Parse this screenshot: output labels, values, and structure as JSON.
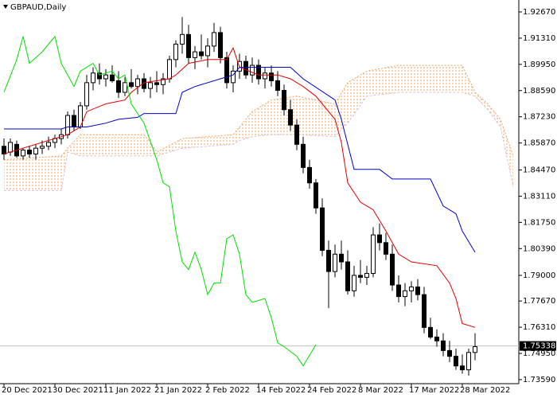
{
  "chart_data": {
    "type": "candlestick",
    "title": "GBPAUD,Daily",
    "open": [
      1.857,
      1.854,
      1.858,
      1.852,
      1.855,
      1.853,
      1.856,
      1.857,
      1.859,
      1.861,
      1.863,
      1.873,
      1.867,
      1.878,
      1.89,
      1.895,
      1.892,
      1.894,
      1.891,
      1.885,
      1.89,
      1.888,
      1.892,
      1.887,
      1.89,
      1.889,
      1.892,
      1.902,
      1.91,
      1.915,
      1.903,
      1.906,
      1.904,
      1.909,
      1.916,
      1.903,
      1.89,
      1.896,
      1.901,
      1.894,
      1.899,
      1.892,
      1.895,
      1.891,
      1.886,
      1.876,
      1.868,
      1.858,
      1.846,
      1.838,
      1.825,
      1.803,
      1.792,
      1.801,
      1.797,
      1.782,
      1.79,
      1.789,
      1.791,
      1.811,
      1.807,
      1.801,
      1.785,
      1.779,
      1.782,
      1.784,
      1.78,
      1.763,
      1.758,
      1.756,
      1.751,
      1.748,
      1.743,
      1.741,
      1.75
    ],
    "high": [
      1.861,
      1.861,
      1.86,
      1.856,
      1.857,
      1.858,
      1.86,
      1.862,
      1.863,
      1.866,
      1.875,
      1.876,
      1.88,
      1.894,
      1.898,
      1.9,
      1.897,
      1.899,
      1.896,
      1.893,
      1.897,
      1.894,
      1.895,
      1.893,
      1.896,
      1.895,
      1.904,
      1.912,
      1.924,
      1.92,
      1.909,
      1.915,
      1.913,
      1.921,
      1.919,
      1.906,
      1.899,
      1.905,
      1.904,
      1.903,
      1.902,
      1.898,
      1.899,
      1.896,
      1.889,
      1.881,
      1.871,
      1.862,
      1.85,
      1.84,
      1.83,
      1.808,
      1.806,
      1.808,
      1.803,
      1.795,
      1.798,
      1.795,
      1.815,
      1.817,
      1.812,
      1.806,
      1.79,
      1.786,
      1.787,
      1.788,
      1.784,
      1.768,
      1.762,
      1.76,
      1.756,
      1.752,
      1.749,
      1.752,
      1.76
    ],
    "low": [
      1.85,
      1.852,
      1.851,
      1.85,
      1.851,
      1.85,
      1.853,
      1.855,
      1.856,
      1.858,
      1.861,
      1.865,
      1.866,
      1.876,
      1.886,
      1.889,
      1.888,
      1.89,
      1.882,
      1.883,
      1.887,
      1.884,
      1.885,
      1.882,
      1.885,
      1.884,
      1.89,
      1.898,
      1.905,
      1.9,
      1.897,
      1.902,
      1.898,
      1.906,
      1.9,
      1.887,
      1.885,
      1.892,
      1.892,
      1.89,
      1.889,
      1.887,
      1.888,
      1.883,
      1.873,
      1.865,
      1.855,
      1.843,
      1.835,
      1.822,
      1.8,
      1.773,
      1.789,
      1.793,
      1.78,
      1.779,
      1.786,
      1.785,
      1.789,
      1.803,
      1.798,
      1.782,
      1.776,
      1.774,
      1.776,
      1.777,
      1.76,
      1.757,
      1.753,
      1.748,
      1.745,
      1.741,
      1.739,
      1.738,
      1.746
    ],
    "close": [
      1.853,
      1.859,
      1.852,
      1.855,
      1.853,
      1.856,
      1.857,
      1.859,
      1.861,
      1.863,
      1.873,
      1.867,
      1.878,
      1.89,
      1.895,
      1.892,
      1.894,
      1.891,
      1.885,
      1.89,
      1.888,
      1.892,
      1.887,
      1.89,
      1.889,
      1.892,
      1.902,
      1.91,
      1.915,
      1.903,
      1.906,
      1.904,
      1.909,
      1.916,
      1.903,
      1.89,
      1.896,
      1.901,
      1.894,
      1.899,
      1.892,
      1.895,
      1.891,
      1.886,
      1.876,
      1.868,
      1.858,
      1.846,
      1.838,
      1.825,
      1.803,
      1.792,
      1.801,
      1.797,
      1.782,
      1.79,
      1.789,
      1.791,
      1.811,
      1.807,
      1.801,
      1.785,
      1.779,
      1.782,
      1.784,
      1.78,
      1.763,
      1.758,
      1.756,
      1.751,
      1.748,
      1.743,
      1.741,
      1.75,
      1.753
    ],
    "lines": [
      {
        "color": "#e00000",
        "x": [
          0,
          10,
          12,
          13,
          16,
          19,
          20,
          22,
          26,
          27,
          29,
          32,
          35,
          36,
          37,
          40,
          43,
          45,
          47,
          49,
          52,
          53,
          54,
          56,
          58,
          60,
          62,
          64,
          68,
          70,
          71,
          72,
          74
        ],
        "values": [
          1.853,
          1.863,
          1.867,
          1.875,
          1.879,
          1.881,
          1.885,
          1.89,
          1.892,
          1.894,
          1.9,
          1.902,
          1.902,
          1.908,
          1.898,
          1.894,
          1.894,
          1.892,
          1.888,
          1.883,
          1.871,
          1.859,
          1.838,
          1.828,
          1.824,
          1.813,
          1.801,
          1.797,
          1.795,
          1.786,
          1.778,
          1.765,
          1.763
        ]
      },
      {
        "color": "#0000c8",
        "x": [
          0,
          9,
          10,
          13,
          16,
          18,
          21,
          22,
          27,
          28,
          30,
          34,
          36,
          37,
          45,
          47,
          52,
          53,
          55,
          59,
          61,
          67,
          69,
          71,
          72,
          74
        ],
        "values": [
          1.866,
          1.866,
          1.867,
          1.867,
          1.869,
          1.871,
          1.872,
          1.874,
          1.874,
          1.885,
          1.888,
          1.892,
          1.894,
          1.898,
          1.898,
          1.892,
          1.881,
          1.871,
          1.845,
          1.845,
          1.84,
          1.84,
          1.826,
          1.822,
          1.813,
          1.802
        ]
      },
      {
        "color": "#00e000",
        "x": [
          0,
          2,
          3,
          4,
          6,
          8,
          9,
          11,
          12,
          14,
          15,
          17,
          18,
          19,
          20,
          22,
          24,
          25,
          26,
          27,
          28,
          29,
          30,
          31,
          32,
          33,
          34,
          35,
          36,
          37,
          38,
          39,
          41,
          42,
          43,
          44,
          46,
          47,
          49
        ],
        "values": [
          1.885,
          1.902,
          1.914,
          1.9,
          1.906,
          1.914,
          1.9,
          1.888,
          1.896,
          1.9,
          1.894,
          1.896,
          1.892,
          1.894,
          1.879,
          1.869,
          1.85,
          1.838,
          1.836,
          1.813,
          1.797,
          1.793,
          1.802,
          1.793,
          1.78,
          1.786,
          1.786,
          1.809,
          1.811,
          1.801,
          1.78,
          1.776,
          1.778,
          1.768,
          1.755,
          1.753,
          1.748,
          1.743,
          1.754
        ]
      }
    ],
    "cloud": {
      "x": [
        0,
        9,
        10,
        12,
        22,
        23,
        24,
        28,
        36,
        37,
        39,
        42,
        46,
        52,
        54,
        57,
        62,
        72,
        73,
        74,
        76,
        78,
        80
      ],
      "span_a": [
        1.85,
        1.852,
        1.856,
        1.863,
        1.863,
        1.859,
        1.854,
        1.861,
        1.863,
        1.867,
        1.875,
        1.881,
        1.883,
        1.879,
        1.89,
        1.896,
        1.899,
        1.899,
        1.892,
        1.885,
        1.879,
        1.871,
        1.852
      ],
      "span_b": [
        1.834,
        1.834,
        1.854,
        1.852,
        1.852,
        1.852,
        1.852,
        1.856,
        1.858,
        1.86,
        1.862,
        1.863,
        1.863,
        1.862,
        1.869,
        1.883,
        1.885,
        1.885,
        1.884,
        1.883,
        1.876,
        1.867,
        1.836
      ],
      "color_a": "#f4a460",
      "color_b": "#d8bfd8"
    },
    "last_price": 1.75338,
    "xlim": [
      -0.625,
      80.875
    ],
    "ylim": [
      1.7338,
      1.9329
    ],
    "xticks": [
      {
        "value": 0,
        "label": "20 Dec 2021"
      },
      {
        "value": 8,
        "label": "30 Dec 2021"
      },
      {
        "value": 16,
        "label": "11 Jan 2022"
      },
      {
        "value": 24,
        "label": "21 Jan 2022"
      },
      {
        "value": 32,
        "label": "2 Feb 2022"
      },
      {
        "value": 40,
        "label": "14 Feb 2022"
      },
      {
        "value": 48,
        "label": "24 Feb 2022"
      },
      {
        "value": 56,
        "label": "8 Mar 2022"
      },
      {
        "value": 64,
        "label": "17 Mar 2022"
      },
      {
        "value": 72,
        "label": "28 Mar 2022"
      }
    ],
    "yticks": [
      {
        "value": 1.9267,
        "label": "1.92670"
      },
      {
        "value": 1.9131,
        "label": "1.91310"
      },
      {
        "value": 1.8995,
        "label": "1.89950"
      },
      {
        "value": 1.8859,
        "label": "1.88590"
      },
      {
        "value": 1.8723,
        "label": "1.87230"
      },
      {
        "value": 1.8587,
        "label": "1.85870"
      },
      {
        "value": 1.8447,
        "label": "1.84470"
      },
      {
        "value": 1.8311,
        "label": "1.83110"
      },
      {
        "value": 1.8175,
        "label": "1.81750"
      },
      {
        "value": 1.8039,
        "label": "1.80390"
      },
      {
        "value": 1.79,
        "label": "1.79000"
      },
      {
        "value": 1.7767,
        "label": "1.77670"
      },
      {
        "value": 1.7631,
        "label": "1.76310"
      },
      {
        "value": 1.7495,
        "label": "1.74950"
      },
      {
        "value": 1.7359,
        "label": "1.73590"
      }
    ]
  }
}
